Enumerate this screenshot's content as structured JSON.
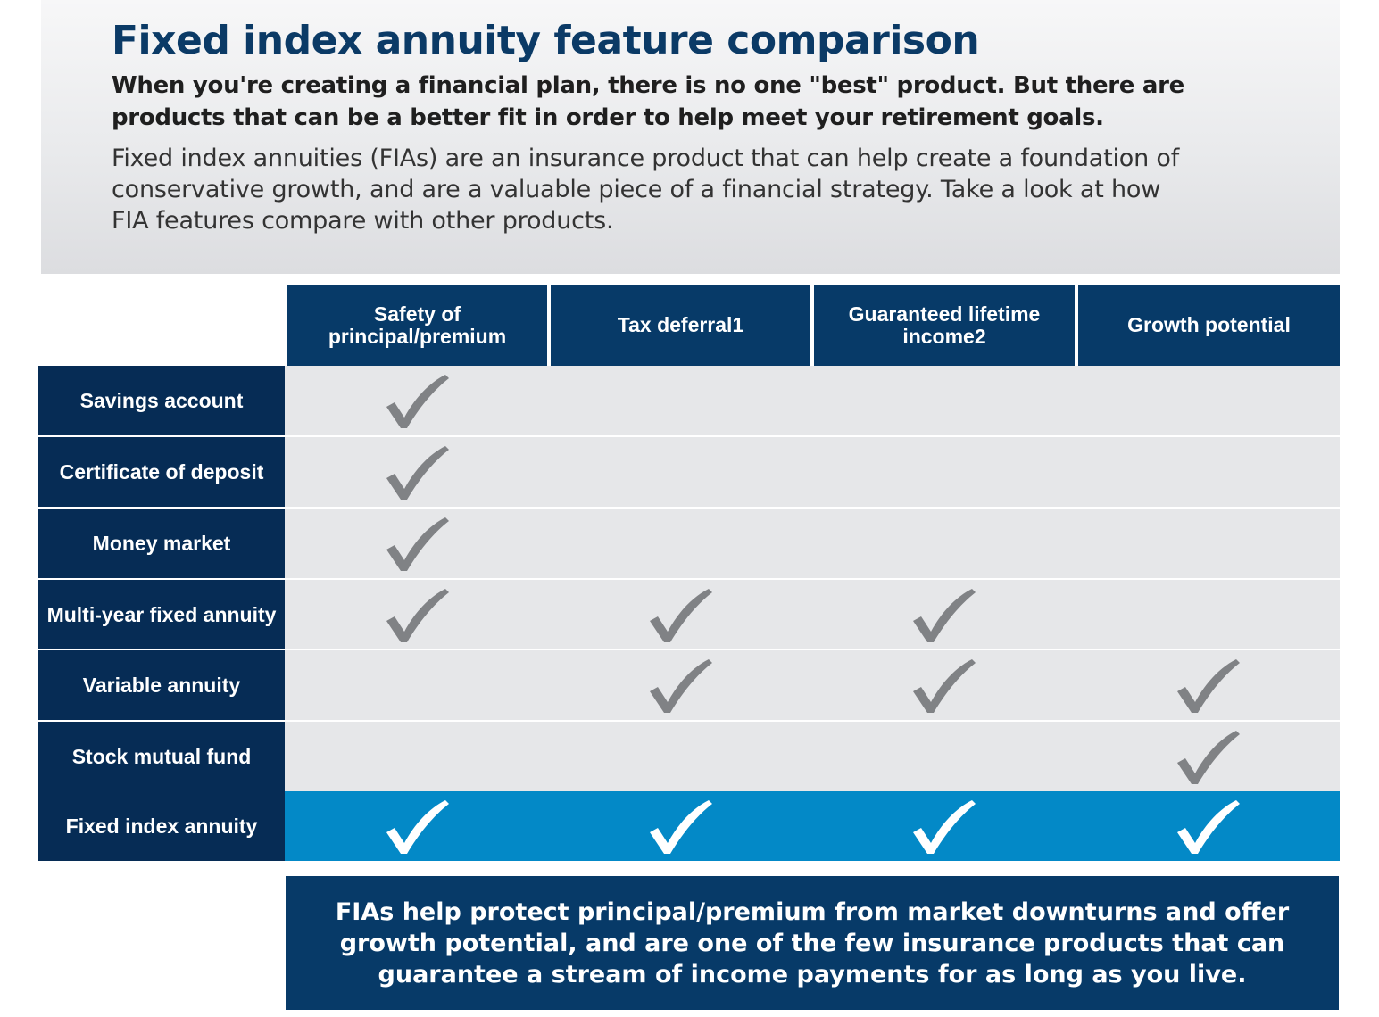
{
  "header": {
    "title": "Fixed index annuity feature comparison",
    "subtitle": "When you're creating a financial plan, there is no one \"best\" product. But there are products that can be a better fit in order to help meet your retirement goals.",
    "intro": "Fixed index annuities (FIAs) are an insurance product that can help create a foundation of conservative growth, and are a valuable piece of a financial strategy. Take a look at how FIA features compare with other products."
  },
  "table": {
    "columns": [
      "Safety of principal/premium",
      "Tax deferral1",
      "Guaranteed lifetime income2",
      "Growth potential"
    ],
    "rows": [
      {
        "label": "Savings account",
        "checks": [
          true,
          false,
          false,
          false
        ],
        "highlight": false
      },
      {
        "label": "Certificate of deposit",
        "checks": [
          true,
          false,
          false,
          false
        ],
        "highlight": false
      },
      {
        "label": "Money market",
        "checks": [
          true,
          false,
          false,
          false
        ],
        "highlight": false
      },
      {
        "label": "Multi-year fixed annuity",
        "checks": [
          true,
          true,
          true,
          false
        ],
        "highlight": false
      },
      {
        "label": "Variable annuity",
        "checks": [
          false,
          true,
          true,
          true
        ],
        "highlight": false
      },
      {
        "label": "Stock mutual fund",
        "checks": [
          false,
          false,
          false,
          true
        ],
        "highlight": false
      },
      {
        "label": "Fixed index annuity",
        "checks": [
          true,
          true,
          true,
          true
        ],
        "highlight": true
      }
    ],
    "check_icon": "checkmark-icon",
    "colors": {
      "check_default": "#808285",
      "check_highlight": "#ffffff",
      "header_blue": "#073a68",
      "highlight_blue": "#0389c7",
      "row_gray": "#e6e7e9"
    }
  },
  "callout": {
    "text": "FIAs help protect principal/premium from market downturns and offer growth potential, and are one of the few insurance products that can guarantee a stream of income payments for as long as you live."
  }
}
